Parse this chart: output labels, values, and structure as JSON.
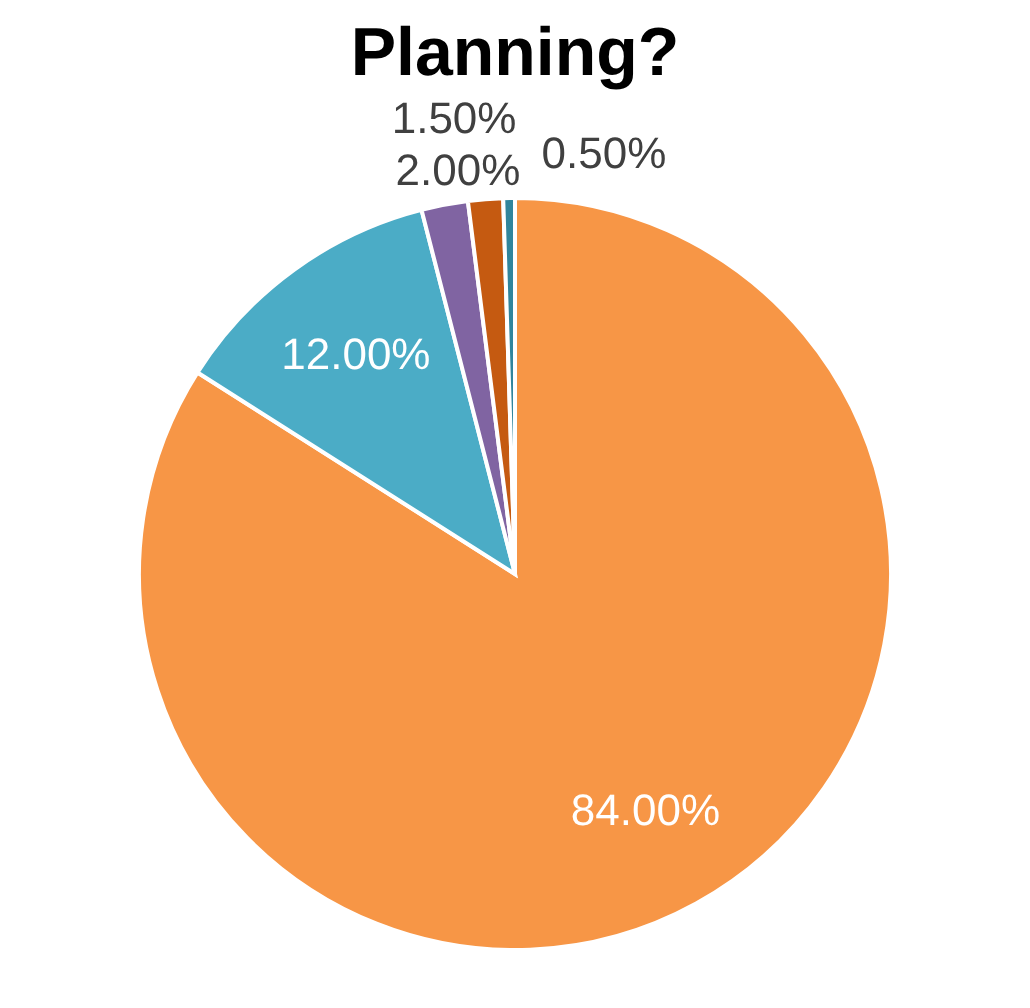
{
  "chart_data": {
    "type": "pie",
    "title": "Planning?",
    "categories": [
      null,
      null,
      null,
      null,
      null
    ],
    "values": [
      84,
      12,
      2,
      1.5,
      0.5
    ],
    "colors": [
      "#f79646",
      "#4bacc6",
      "#8064a2",
      "#c55a11",
      "#31859c"
    ],
    "value_labels": [
      "84.00%",
      "12.00%",
      "2.00%",
      "1.50%",
      "0.50%"
    ]
  }
}
